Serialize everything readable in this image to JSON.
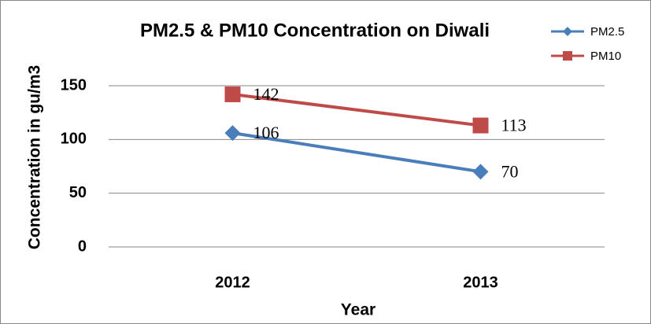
{
  "chart_data": {
    "type": "line",
    "title": "PM2.5 & PM10 Concentration on Diwali",
    "x_label": "Year",
    "y_label": "Concentration in gu/m3",
    "categories": [
      "2012",
      "2013"
    ],
    "series": [
      {
        "name": "PM2.5",
        "color": "#4a7ebb",
        "marker": "diamond",
        "values": [
          106,
          70
        ]
      },
      {
        "name": "PM10",
        "color": "#be4b48",
        "marker": "square",
        "values": [
          142,
          113
        ]
      }
    ],
    "ylim": [
      0,
      150
    ],
    "yticks": [
      0,
      50,
      100,
      150
    ],
    "grid": true,
    "legend": "top-right"
  }
}
